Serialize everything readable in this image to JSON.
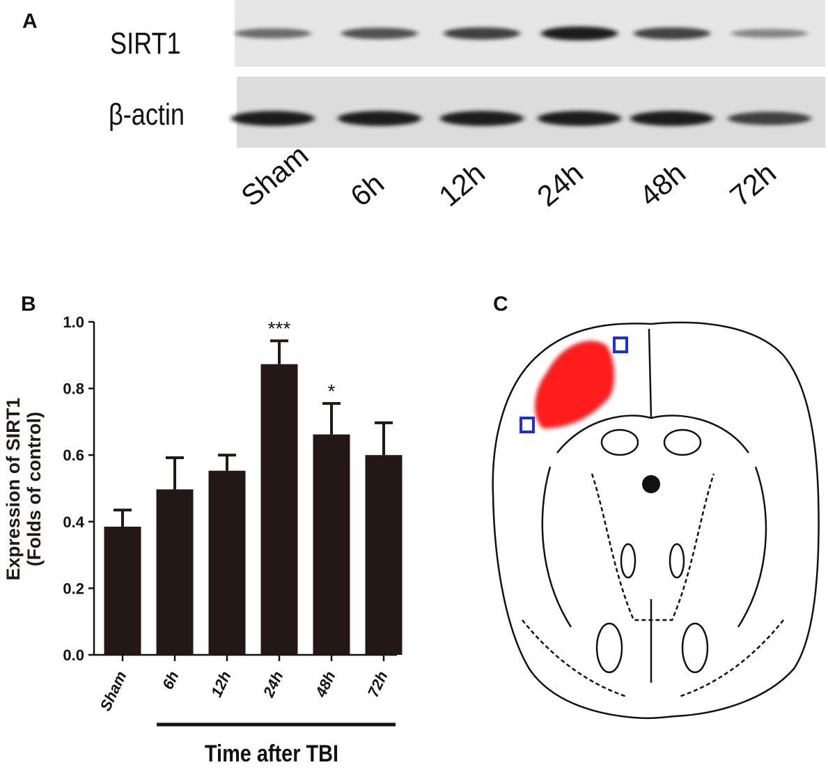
{
  "panels": {
    "a": "A",
    "b": "B",
    "c": "C"
  },
  "blot": {
    "rows": [
      "SIRT1",
      "β-actin"
    ],
    "lanes": [
      "Sham",
      "6h",
      "12h",
      "24h",
      "48h",
      "72h"
    ],
    "sirt1_intensity": [
      0.55,
      0.7,
      0.8,
      1.0,
      0.78,
      0.4
    ],
    "actin_intensity": [
      0.95,
      0.95,
      0.95,
      0.95,
      0.95,
      0.75
    ]
  },
  "chart_data": {
    "type": "bar",
    "categories": [
      "Sham",
      "6h",
      "12h",
      "24h",
      "48h",
      "72h"
    ],
    "values": [
      0.385,
      0.497,
      0.553,
      0.873,
      0.662,
      0.6
    ],
    "errors": [
      0.05,
      0.095,
      0.047,
      0.07,
      0.093,
      0.097
    ],
    "annotations": [
      "",
      "",
      "",
      "***",
      "*",
      ""
    ],
    "ylabel_line1": "Expression of SIRT1",
    "ylabel_line2": "(Folds of control)",
    "xlabel": "Time after TBI",
    "yticks": [
      "0.0",
      "0.2",
      "0.4",
      "0.6",
      "0.8",
      "1.0"
    ],
    "ylim": [
      0,
      1.0
    ],
    "bar_color": "#231815"
  },
  "diagram": {
    "lesion_color": "#ff1a1a",
    "marker_color": "#1a2fe0"
  }
}
